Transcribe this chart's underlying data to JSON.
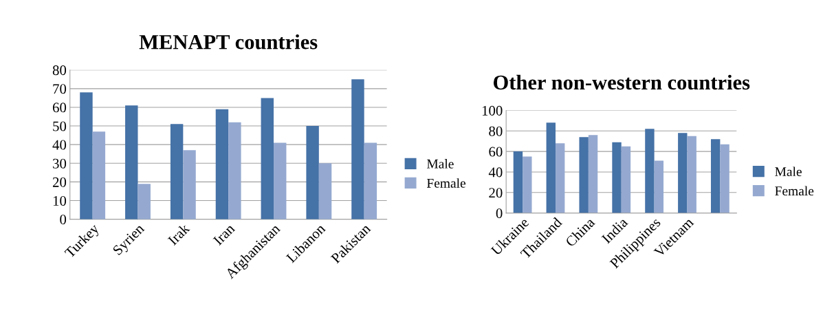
{
  "chart_data": [
    {
      "type": "bar",
      "title": "MENAPT countries",
      "categories": [
        "Turkey",
        "Syrien",
        "Irak",
        "Iran",
        "Afghanistan",
        "Libanon",
        "Pakistan"
      ],
      "series": [
        {
          "name": "Male",
          "color": "#4572a7",
          "values": [
            68,
            61,
            51,
            59,
            65,
            50,
            75
          ]
        },
        {
          "name": "Female",
          "color": "#95a9d0",
          "values": [
            47,
            19,
            37,
            52,
            41,
            30,
            41
          ]
        }
      ],
      "ylim": [
        0,
        80
      ],
      "yticks": [
        0,
        10,
        20,
        30,
        40,
        50,
        60,
        70,
        80
      ],
      "grid": "y",
      "legend": "right"
    },
    {
      "type": "bar",
      "title": "Other non-western countries",
      "categories": [
        "Ukraine",
        "Thailand",
        "China",
        "India",
        "Philippines",
        "Vietnam",
        null
      ],
      "series": [
        {
          "name": "Male",
          "color": "#4572a7",
          "values": [
            60,
            88,
            74,
            69,
            82,
            78,
            72
          ]
        },
        {
          "name": "Female",
          "color": "#95a9d0",
          "values": [
            55,
            68,
            76,
            65,
            51,
            75,
            67
          ]
        }
      ],
      "ylim": [
        0,
        100
      ],
      "yticks": [
        0,
        20,
        40,
        60,
        80,
        100
      ],
      "grid": "y",
      "legend": "right"
    }
  ]
}
